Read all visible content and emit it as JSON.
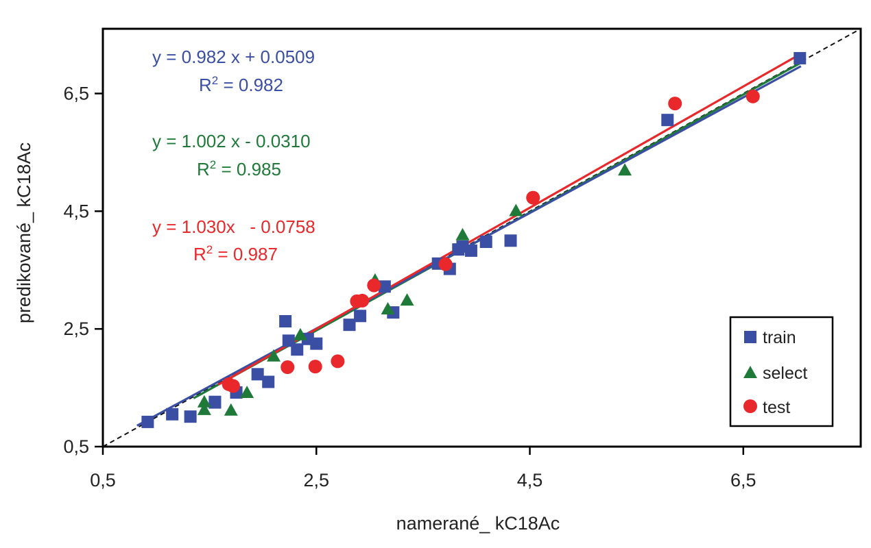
{
  "chart_data": {
    "type": "scatter",
    "xlabel": "namerané_ kC18Ac",
    "ylabel": "predikované_ kC18Ac",
    "xlim": [
      0.5,
      7.6
    ],
    "ylim": [
      0.5,
      7.6
    ],
    "xticks": [
      0.5,
      2.5,
      4.5,
      6.5
    ],
    "yticks": [
      0.5,
      2.5,
      4.5,
      6.5
    ],
    "xtick_labels": [
      "0,5",
      "2,5",
      "4,5",
      "6,5"
    ],
    "ytick_labels": [
      "0,5",
      "2,5",
      "4,5",
      "6,5"
    ],
    "grid": false,
    "legend_position": "bottom-right",
    "reference_line": "y = x (dashed)",
    "series": [
      {
        "name": "train",
        "marker": "square",
        "color": "#3a4fa3",
        "fit": {
          "slope": 0.982,
          "intercept": 0.0509
        },
        "equation": "y = 0.982 x + 0.0509",
        "r2_label": "R",
        "r2_sup": "2",
        "r2_value": " = 0.982",
        "x": [
          0.92,
          1.15,
          1.32,
          1.55,
          1.55,
          1.75,
          1.75,
          2.05,
          1.95,
          2.21,
          2.24,
          2.32,
          2.42,
          2.5,
          2.81,
          2.91,
          3.14,
          3.22,
          3.64,
          3.75,
          3.83,
          3.87,
          3.95,
          4.09,
          4.32,
          5.79,
          7.03
        ],
        "y": [
          0.92,
          1.05,
          1.01,
          1.25,
          1.26,
          1.42,
          1.42,
          1.6,
          1.73,
          2.63,
          2.3,
          2.15,
          2.33,
          2.25,
          2.57,
          2.72,
          3.22,
          2.78,
          3.61,
          3.52,
          3.85,
          3.9,
          3.83,
          3.98,
          4.0,
          6.05,
          7.1
        ]
      },
      {
        "name": "select",
        "marker": "triangle",
        "color": "#1f7a3a",
        "fit": {
          "slope": 1.002,
          "intercept": -0.031
        },
        "equation": "y = 1.002 x - 0.0310",
        "r2_label": "R",
        "r2_sup": "2",
        "r2_value": " = 0.985",
        "x": [
          1.45,
          1.7,
          1.85,
          1.45,
          2.1,
          2.35,
          3.05,
          3.17,
          3.35,
          3.87,
          4.37,
          5.39
        ],
        "y": [
          1.13,
          1.12,
          1.42,
          1.26,
          2.04,
          2.4,
          3.33,
          2.84,
          2.99,
          4.1,
          4.51,
          5.2
        ]
      },
      {
        "name": "test",
        "marker": "circle",
        "color": "#e8282b",
        "fit": {
          "slope": 1.03,
          "intercept": -0.0758
        },
        "equation": "y = 1.030x   - 0.0758",
        "r2_label": "R",
        "r2_sup": "2",
        "r2_value": " = 0.987",
        "x": [
          1.68,
          1.72,
          2.23,
          2.49,
          2.7,
          2.88,
          2.93,
          3.04,
          3.71,
          4.53,
          5.86,
          6.59
        ],
        "y": [
          1.56,
          1.53,
          1.85,
          1.86,
          1.95,
          2.97,
          2.98,
          3.24,
          3.6,
          4.73,
          6.33,
          6.45
        ]
      }
    ]
  }
}
